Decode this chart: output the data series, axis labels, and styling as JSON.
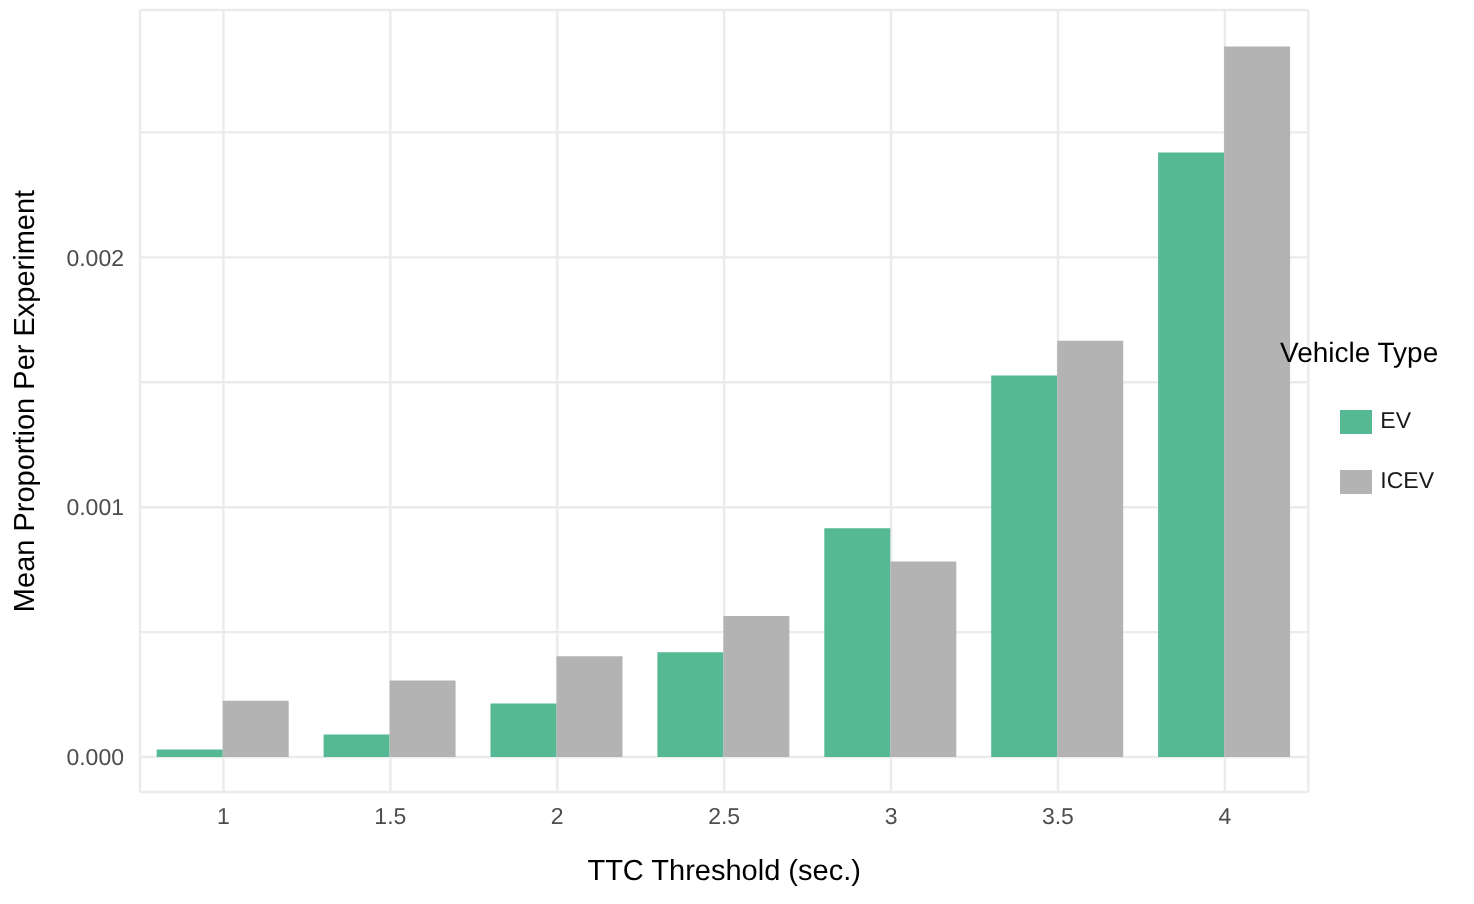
{
  "chart_data": {
    "type": "bar",
    "xlabel": "TTC Threshold (sec.)",
    "ylabel": "Mean Proportion Per Experiment",
    "legend_title": "Vehicle Type",
    "categories": [
      "1",
      "1.5",
      "2",
      "2.5",
      "3",
      "3.5",
      "4"
    ],
    "series": [
      {
        "name": "EV",
        "color": "#55b993",
        "values": [
          3e-05,
          9e-05,
          0.000214,
          0.000419,
          0.000916,
          0.001527,
          0.00242
        ]
      },
      {
        "name": "ICEV",
        "color": "#b3b3b3",
        "values": [
          0.000225,
          0.000306,
          0.000403,
          0.000564,
          0.000783,
          0.001666,
          0.002844
        ]
      }
    ],
    "ylim": [
      -0.00014,
      0.00299
    ],
    "yticks": [
      {
        "value": 0,
        "label": "0.000"
      },
      {
        "value": 0.0005,
        "label": null
      },
      {
        "value": 0.001,
        "label": "0.001"
      },
      {
        "value": 0.0015,
        "label": null
      },
      {
        "value": 0.002,
        "label": "0.002"
      },
      {
        "value": 0.0025,
        "label": null
      }
    ],
    "grid": true,
    "legend": "right"
  }
}
